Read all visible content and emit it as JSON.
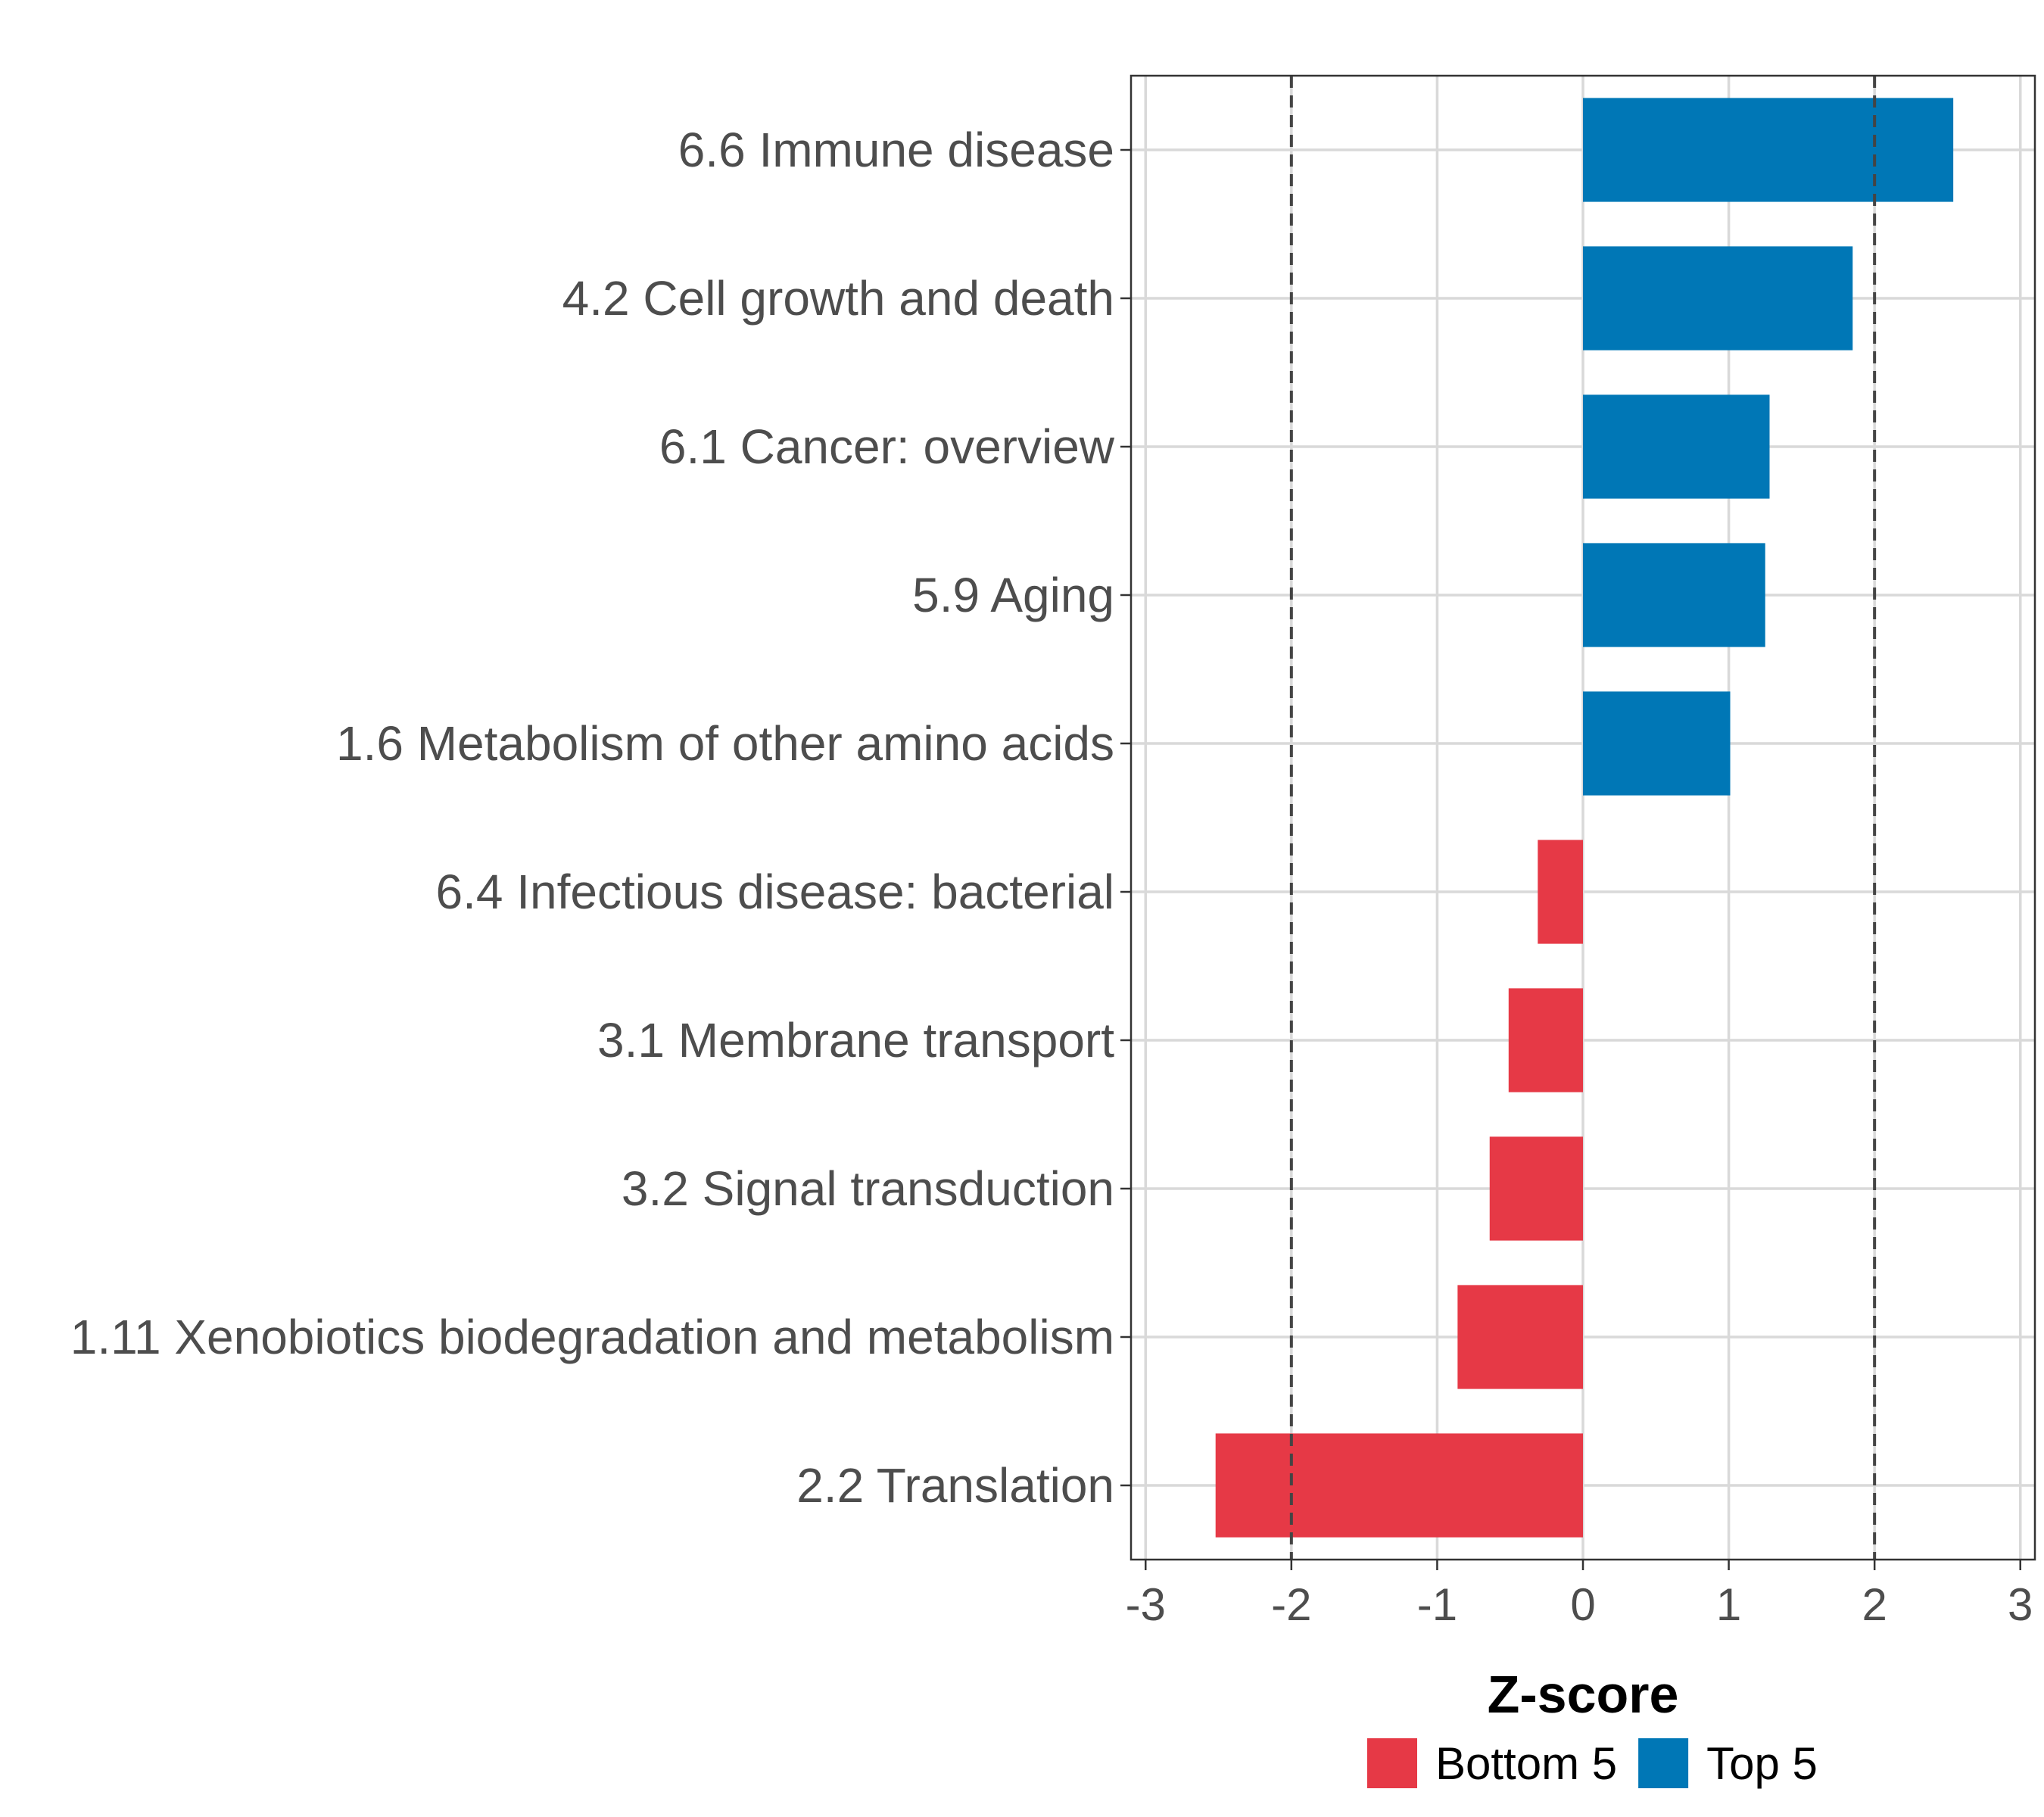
{
  "chart_data": {
    "type": "bar",
    "orientation": "horizontal",
    "title": "",
    "xlabel": "Z-score",
    "ylabel": "",
    "xlim": [
      -3.1,
      3.1
    ],
    "xticks": [
      -3,
      -2,
      -1,
      0,
      1,
      2,
      3
    ],
    "xtick_labels": [
      "-3",
      "-2",
      "-1",
      "0",
      "1",
      "2",
      "3"
    ],
    "reference_lines": [
      -2,
      2
    ],
    "grid": true,
    "legend_position": "bottom",
    "categories": [
      "6.6 Immune disease",
      "4.2 Cell growth and death",
      "6.1 Cancer: overview",
      "5.9 Aging",
      "1.6 Metabolism of other amino acids",
      "6.4 Infectious disease: bacterial",
      "3.1 Membrane transport",
      "3.2 Signal transduction",
      "1.11 Xenobiotics biodegradation and metabolism",
      "2.2 Translation"
    ],
    "values": [
      2.54,
      1.85,
      1.28,
      1.25,
      1.01,
      -0.31,
      -0.51,
      -0.64,
      -0.86,
      -2.52
    ],
    "groups": [
      "Top 5",
      "Top 5",
      "Top 5",
      "Top 5",
      "Top 5",
      "Bottom 5",
      "Bottom 5",
      "Bottom 5",
      "Bottom 5",
      "Bottom 5"
    ],
    "legend": [
      {
        "name": "Bottom 5",
        "color": "#e63946"
      },
      {
        "name": "Top 5",
        "color": "#0077b6"
      }
    ]
  }
}
